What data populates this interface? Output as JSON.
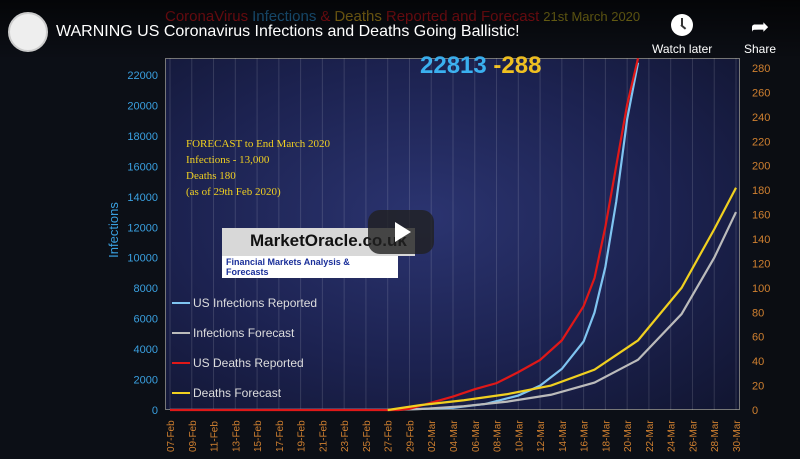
{
  "video": {
    "title": "WARNING US Coronavirus Infections and Deaths Going Ballistic!",
    "watch_later": "Watch later",
    "share": "Share"
  },
  "overlay": {
    "counter_infections": "22813",
    "counter_deaths": "-288",
    "logo": "MarketOracle.co.uk",
    "logo_sub": "Financial Markets Analysis & Forecasts",
    "forecast_lines": [
      "FORECAST to End March 2020",
      "Infections - 13,000",
      "Deaths 180",
      "(as of 29th Feb  2020)"
    ]
  },
  "chart_data": {
    "type": "line",
    "title_parts": [
      {
        "text": "CoronaVirus",
        "color": "#c0141c"
      },
      {
        "text": "Infections",
        "color": "#2a88c8"
      },
      {
        "text": "&",
        "color": "#c0141c"
      },
      {
        "text": "Deaths",
        "color": "#c8a020"
      },
      {
        "text": "Reported and Forecast",
        "color": "#c0141c"
      },
      {
        "text": "21st  March 2020",
        "color": "#b0a020"
      }
    ],
    "ylabel": "Infections",
    "y_ticks": [
      0,
      2000,
      4000,
      6000,
      8000,
      10000,
      12000,
      14000,
      16000,
      18000,
      20000,
      22000
    ],
    "y2_ticks": [
      0,
      20,
      40,
      60,
      80,
      100,
      120,
      140,
      160,
      180,
      200,
      220,
      240,
      260,
      280
    ],
    "ylim": [
      0,
      22400
    ],
    "y2lim": [
      0,
      286
    ],
    "x_ticks": [
      "07-Feb",
      "09-Feb",
      "11-Feb",
      "13-Feb",
      "15-Feb",
      "17-Feb",
      "19-Feb",
      "21-Feb",
      "23-Feb",
      "25-Feb",
      "27-Feb",
      "29-Feb",
      "02-Mar",
      "04-Mar",
      "06-Mar",
      "08-Mar",
      "10-Mar",
      "12-Mar",
      "14-Mar",
      "16-Mar",
      "18-Mar",
      "20-Mar",
      "22-Mar",
      "24-Mar",
      "26-Mar",
      "28-Mar",
      "30-Mar"
    ],
    "grid": true,
    "legend": "left",
    "series": [
      {
        "name": "US Infections Reported",
        "color": "#7fc4f0",
        "axis": "left",
        "x": [
          "07-Feb",
          "27-Feb",
          "01-Mar",
          "04-Mar",
          "07-Mar",
          "10-Mar",
          "12-Mar",
          "14-Mar",
          "16-Mar",
          "17-Mar",
          "18-Mar",
          "19-Mar",
          "20-Mar",
          "21-Mar"
        ],
        "y": [
          12,
          15,
          70,
          150,
          400,
          950,
          1600,
          2700,
          4500,
          6400,
          9400,
          13700,
          19100,
          22813
        ]
      },
      {
        "name": "Infections Forecast",
        "color": "#bbbbbb",
        "axis": "left",
        "x": [
          "27-Feb",
          "01-Mar",
          "05-Mar",
          "09-Mar",
          "13-Mar",
          "17-Mar",
          "21-Mar",
          "25-Mar",
          "28-Mar",
          "30-Mar"
        ],
        "y": [
          0,
          60,
          250,
          550,
          1000,
          1800,
          3300,
          6300,
          10000,
          13000
        ]
      },
      {
        "name": "US Deaths Reported",
        "color": "#e01818",
        "axis": "right",
        "x": [
          "07-Feb",
          "28-Feb",
          "29-Feb",
          "02-Mar",
          "04-Mar",
          "06-Mar",
          "08-Mar",
          "10-Mar",
          "12-Mar",
          "14-Mar",
          "16-Mar",
          "17-Mar",
          "18-Mar",
          "19-Mar",
          "20-Mar",
          "21-Mar"
        ],
        "y": [
          0,
          0,
          1,
          6,
          11,
          17,
          22,
          31,
          41,
          57,
          85,
          108,
          150,
          200,
          250,
          288
        ]
      },
      {
        "name": "Deaths Forecast",
        "color": "#f0d020",
        "axis": "right",
        "x": [
          "27-Feb",
          "01-Mar",
          "05-Mar",
          "09-Mar",
          "13-Mar",
          "17-Mar",
          "21-Mar",
          "25-Mar",
          "28-Mar",
          "30-Mar"
        ],
        "y": [
          0,
          4,
          8,
          13,
          20,
          33,
          57,
          100,
          148,
          182
        ]
      }
    ]
  }
}
